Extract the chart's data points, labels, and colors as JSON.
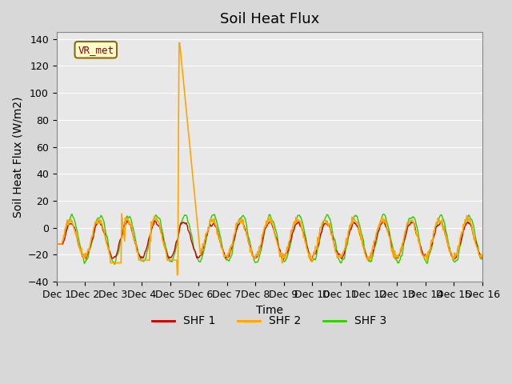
{
  "title": "Soil Heat Flux",
  "ylabel": "Soil Heat Flux (W/m2)",
  "xlabel": "Time",
  "ylim": [
    -40,
    145
  ],
  "yticks": [
    -40,
    -20,
    0,
    20,
    40,
    60,
    80,
    100,
    120,
    140
  ],
  "xlim": [
    0,
    15
  ],
  "xtick_labels": [
    "Dec 1",
    "Dec 2",
    "Dec 3",
    "Dec 4",
    "Dec 5",
    "Dec 6",
    "Dec 7",
    "Dec 8",
    "Dec 9",
    "Dec 10",
    "Dec 11",
    "Dec 12",
    "Dec 13",
    "Dec 14",
    "Dec 15",
    "Dec 16"
  ],
  "xtick_positions": [
    0,
    1,
    2,
    3,
    4,
    5,
    6,
    7,
    8,
    9,
    10,
    11,
    12,
    13,
    14,
    15
  ],
  "colors": {
    "SHF1": "#cc0000",
    "SHF2": "#ffa500",
    "SHF3": "#33cc00"
  },
  "legend_labels": [
    "SHF 1",
    "SHF 2",
    "SHF 3"
  ],
  "station_label": "VR_met",
  "bg_color": "#e8e8e8",
  "plot_bg_color": "#e8e8e8",
  "title_fontsize": 13,
  "axis_label_fontsize": 10,
  "tick_label_fontsize": 9,
  "legend_fontsize": 10
}
